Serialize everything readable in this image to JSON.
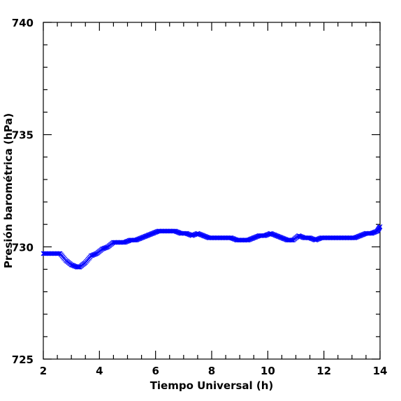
{
  "chart_data": {
    "type": "scatter",
    "xlabel": "Tiempo Universal (h)",
    "ylabel": "Presión barométrica (hPa)",
    "xlim": [
      2,
      14
    ],
    "ylim": [
      725,
      740
    ],
    "x_ticks": [
      2,
      4,
      6,
      8,
      10,
      12,
      14
    ],
    "y_ticks": [
      725,
      730,
      735,
      740
    ],
    "x_tick_labels": [
      "2",
      "4",
      "6",
      "8",
      "10",
      "12",
      "14"
    ],
    "y_tick_labels": [
      "725",
      "730",
      "735",
      "740"
    ],
    "grid": false,
    "marker": "x",
    "marker_color": "#0000ff",
    "series": [
      {
        "x": [
          2.0,
          2.2,
          2.4,
          2.6,
          2.8,
          3.0,
          3.2,
          3.3,
          3.5,
          3.7,
          3.9,
          4.1,
          4.3,
          4.5,
          4.7,
          4.9,
          5.1,
          5.3,
          5.5,
          5.7,
          5.9,
          6.1,
          6.3,
          6.5,
          6.7,
          6.9,
          7.1,
          7.3,
          7.5,
          7.7,
          7.9,
          8.1,
          8.3,
          8.5,
          8.7,
          8.9,
          9.1,
          9.3,
          9.5,
          9.7,
          9.9,
          10.1,
          10.3,
          10.5,
          10.7,
          10.9,
          11.1,
          11.3,
          11.5,
          11.7,
          11.9,
          12.1,
          12.3,
          12.5,
          12.7,
          12.9,
          13.1,
          13.3,
          13.5,
          13.7,
          13.9,
          14.0
        ],
        "y": [
          729.7,
          729.7,
          729.7,
          729.7,
          729.4,
          729.2,
          729.1,
          729.1,
          729.3,
          729.6,
          729.7,
          729.9,
          730.0,
          730.2,
          730.2,
          730.2,
          730.3,
          730.3,
          730.4,
          730.5,
          730.6,
          730.7,
          730.7,
          730.7,
          730.7,
          730.6,
          730.6,
          730.5,
          730.6,
          730.5,
          730.4,
          730.4,
          730.4,
          730.4,
          730.4,
          730.3,
          730.3,
          730.3,
          730.4,
          730.5,
          730.5,
          730.6,
          730.5,
          730.4,
          730.3,
          730.3,
          730.5,
          730.4,
          730.4,
          730.3,
          730.4,
          730.4,
          730.4,
          730.4,
          730.4,
          730.4,
          730.4,
          730.5,
          730.6,
          730.6,
          730.7,
          730.9
        ]
      }
    ]
  }
}
